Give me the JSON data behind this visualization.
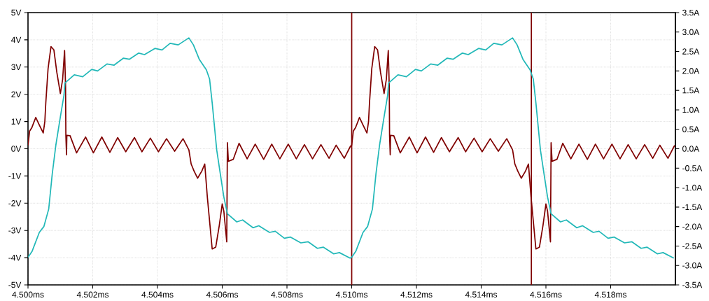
{
  "chart_data": {
    "type": "line",
    "xlim": [
      4.5,
      4.52
    ],
    "ylim": [
      -5,
      5
    ],
    "y2lim": [
      -3.5,
      3.5
    ],
    "xticks": [
      {
        "value": 4.5,
        "label": "4.500ms"
      },
      {
        "value": 4.502,
        "label": "4.502ms"
      },
      {
        "value": 4.504,
        "label": "4.504ms"
      },
      {
        "value": 4.506,
        "label": "4.506ms"
      },
      {
        "value": 4.508,
        "label": "4.508ms"
      },
      {
        "value": 4.51,
        "label": "4.510ms"
      },
      {
        "value": 4.512,
        "label": "4.512ms"
      },
      {
        "value": 4.514,
        "label": "4.514ms"
      },
      {
        "value": 4.516,
        "label": "4.516ms"
      },
      {
        "value": 4.518,
        "label": "4.518ms"
      }
    ],
    "yticks": [
      {
        "value": -5,
        "label": "-5V"
      },
      {
        "value": -4,
        "label": "-4V"
      },
      {
        "value": -3,
        "label": "-3V"
      },
      {
        "value": -2,
        "label": "-2V"
      },
      {
        "value": -1,
        "label": "-1V"
      },
      {
        "value": 0,
        "label": "0V"
      },
      {
        "value": 1,
        "label": "1V"
      },
      {
        "value": 2,
        "label": "2V"
      },
      {
        "value": 3,
        "label": "3V"
      },
      {
        "value": 4,
        "label": "4V"
      },
      {
        "value": 5,
        "label": "5V"
      }
    ],
    "y2ticks": [
      {
        "value": -3.5,
        "label": "-3.5A"
      },
      {
        "value": -3.0,
        "label": "-3.0A"
      },
      {
        "value": -2.5,
        "label": "-2.5A"
      },
      {
        "value": -2.0,
        "label": "-2.0A"
      },
      {
        "value": -1.5,
        "label": "-1.5A"
      },
      {
        "value": -1.0,
        "label": "-1.0A"
      },
      {
        "value": -0.5,
        "label": "-0.5A"
      },
      {
        "value": 0,
        "label": "0.0A"
      },
      {
        "value": 0.5,
        "label": "0.5A"
      },
      {
        "value": 1.0,
        "label": "1.0A"
      },
      {
        "value": 1.5,
        "label": "1.5A"
      },
      {
        "value": 2.0,
        "label": "2.0A"
      },
      {
        "value": 2.5,
        "label": "2.5A"
      },
      {
        "value": 3.0,
        "label": "3.0A"
      },
      {
        "value": 3.5,
        "label": "3.5A"
      }
    ],
    "grid": true,
    "marker": "none",
    "line_style": "solid",
    "ref_lines": [
      {
        "axis": "x",
        "value": 4.51,
        "color": "#800000"
      },
      {
        "axis": "x",
        "value": 4.51555,
        "color": "#800000"
      }
    ],
    "series": [
      {
        "color": "#800000",
        "axis": "y",
        "x": [
          4.5,
          4.50005,
          4.50012,
          4.50024,
          4.50035,
          4.50047,
          4.50052,
          4.50055,
          4.50062,
          4.50071,
          4.5008,
          4.50089,
          4.501,
          4.50107,
          4.50113,
          4.50116,
          4.50117,
          4.50119,
          4.5012,
          4.5013,
          4.5015,
          4.50178,
          4.50202,
          4.50228,
          4.50253,
          4.50277,
          4.50302,
          4.50329,
          4.50352,
          4.50378,
          4.50403,
          4.50428,
          4.50453,
          4.50479,
          4.50497,
          4.50504,
          4.50513,
          4.50524,
          4.50537,
          4.50546,
          4.50554,
          4.50569,
          4.5058,
          4.50591,
          4.506,
          4.50605,
          4.50614,
          4.50616,
          4.50619,
          4.50634,
          4.50652,
          4.50677,
          4.50702,
          4.50728,
          4.50753,
          4.50778,
          4.50804,
          4.50829,
          4.50854,
          4.50879,
          4.50905,
          4.5093,
          4.50952,
          4.50977,
          4.50996,
          4.51,
          4.51005,
          4.51012,
          4.51024,
          4.51035,
          4.51047,
          4.51052,
          4.51055,
          4.51062,
          4.51071,
          4.5108,
          4.51089,
          4.511,
          4.51107,
          4.51113,
          4.51116,
          4.51117,
          4.51119,
          4.5112,
          4.5113,
          4.5115,
          4.51178,
          4.51202,
          4.51228,
          4.51253,
          4.51277,
          4.51302,
          4.51329,
          4.51352,
          4.51378,
          4.51403,
          4.51428,
          4.51453,
          4.51479,
          4.51497,
          4.51504,
          4.51513,
          4.51524,
          4.51537,
          4.51546,
          4.51554,
          4.51569,
          4.5158,
          4.51591,
          4.516,
          4.51605,
          4.51614,
          4.51616,
          4.51619,
          4.51634,
          4.51652,
          4.51677,
          4.51702,
          4.51728,
          4.51753,
          4.51778,
          4.51804,
          4.51829,
          4.51854,
          4.51879,
          4.51905,
          4.5193,
          4.51952,
          4.51977,
          4.51996,
          4.52
        ],
        "values": [
          0.13,
          0.65,
          0.78,
          1.15,
          0.87,
          0.58,
          1.0,
          1.69,
          2.94,
          3.75,
          3.63,
          2.81,
          2.03,
          2.55,
          3.61,
          2.29,
          0.48,
          -0.22,
          0.49,
          0.48,
          -0.15,
          0.43,
          -0.15,
          0.43,
          -0.13,
          0.41,
          -0.11,
          0.41,
          -0.11,
          0.39,
          -0.11,
          0.37,
          -0.09,
          0.37,
          -0.04,
          -0.56,
          -0.82,
          -1.08,
          -0.82,
          -0.56,
          -1.77,
          -3.68,
          -3.61,
          -2.81,
          -2.03,
          -2.29,
          -3.42,
          0.22,
          -0.46,
          -0.39,
          0.2,
          -0.37,
          0.17,
          -0.39,
          0.17,
          -0.37,
          0.17,
          -0.37,
          0.15,
          -0.37,
          0.15,
          -0.35,
          0.13,
          -0.35,
          0.09,
          0.13,
          0.65,
          0.78,
          1.15,
          0.87,
          0.58,
          1.0,
          1.69,
          2.94,
          3.75,
          3.63,
          2.81,
          2.03,
          2.55,
          3.61,
          2.29,
          0.48,
          -0.22,
          0.49,
          0.48,
          -0.15,
          0.43,
          -0.15,
          0.43,
          -0.13,
          0.41,
          -0.11,
          0.41,
          -0.11,
          0.39,
          -0.11,
          0.37,
          -0.09,
          0.37,
          -0.04,
          -0.56,
          -0.82,
          -1.08,
          -0.82,
          -0.56,
          -1.77,
          -3.68,
          -3.61,
          -2.81,
          -2.03,
          -2.29,
          -3.42,
          0.22,
          -0.46,
          -0.39,
          0.2,
          -0.37,
          0.17,
          -0.39,
          0.17,
          -0.37,
          0.17,
          -0.37,
          0.15,
          -0.37,
          0.15,
          -0.35,
          0.13,
          -0.35,
          0.09,
          0.13
        ]
      },
      {
        "color": "#22b8b8",
        "axis": "y2",
        "x": [
          4.5,
          4.50013,
          4.50035,
          4.50049,
          4.50064,
          4.50075,
          4.50086,
          4.501,
          4.50111,
          4.50114,
          4.50143,
          4.50169,
          4.50197,
          4.50215,
          4.50244,
          4.50266,
          4.50295,
          4.50313,
          4.50342,
          4.5036,
          4.50392,
          4.50414,
          4.50439,
          4.50464,
          4.50497,
          4.50511,
          4.50529,
          4.50551,
          4.50561,
          4.50569,
          4.50583,
          4.50594,
          4.50605,
          4.50616,
          4.50645,
          4.50663,
          4.50695,
          4.50713,
          4.50746,
          4.50764,
          4.50792,
          4.50811,
          4.50843,
          4.50865,
          4.50894,
          4.50912,
          4.50944,
          4.50962,
          4.50995,
          4.51,
          4.51013,
          4.51035,
          4.51049,
          4.51064,
          4.51075,
          4.51086,
          4.511,
          4.51111,
          4.51114,
          4.51143,
          4.51169,
          4.51197,
          4.51215,
          4.51244,
          4.51266,
          4.51295,
          4.51313,
          4.51342,
          4.5136,
          4.51392,
          4.51414,
          4.51439,
          4.51464,
          4.51497,
          4.51511,
          4.51529,
          4.51551,
          4.51561,
          4.51569,
          4.51583,
          4.51594,
          4.51605,
          4.51616,
          4.51645,
          4.51663,
          4.51695,
          4.51713,
          4.51746,
          4.51764,
          4.51792,
          4.51811,
          4.51843,
          4.51865,
          4.51894,
          4.51912,
          4.51944,
          4.51962,
          4.51995
        ],
        "values": [
          -2.79,
          -2.63,
          -2.15,
          -2.0,
          -1.55,
          -0.64,
          0.09,
          0.82,
          1.37,
          1.69,
          1.9,
          1.85,
          2.04,
          2.0,
          2.18,
          2.15,
          2.33,
          2.3,
          2.46,
          2.42,
          2.58,
          2.54,
          2.71,
          2.67,
          2.85,
          2.67,
          2.3,
          2.03,
          1.79,
          1.18,
          -0.03,
          -0.64,
          -1.24,
          -1.67,
          -1.88,
          -1.83,
          -2.03,
          -1.98,
          -2.15,
          -2.12,
          -2.3,
          -2.27,
          -2.42,
          -2.39,
          -2.56,
          -2.53,
          -2.7,
          -2.67,
          -2.81,
          -2.79,
          -2.63,
          -2.15,
          -2.0,
          -1.55,
          -0.64,
          0.09,
          0.82,
          1.37,
          1.69,
          1.9,
          1.85,
          2.04,
          2.0,
          2.18,
          2.15,
          2.33,
          2.3,
          2.46,
          2.42,
          2.58,
          2.54,
          2.71,
          2.67,
          2.85,
          2.67,
          2.3,
          2.03,
          1.79,
          1.18,
          -0.03,
          -0.64,
          -1.24,
          -1.67,
          -1.88,
          -1.83,
          -2.03,
          -1.98,
          -2.15,
          -2.12,
          -2.3,
          -2.27,
          -2.42,
          -2.39,
          -2.56,
          -2.53,
          -2.7,
          -2.67,
          -2.81
        ]
      }
    ]
  }
}
